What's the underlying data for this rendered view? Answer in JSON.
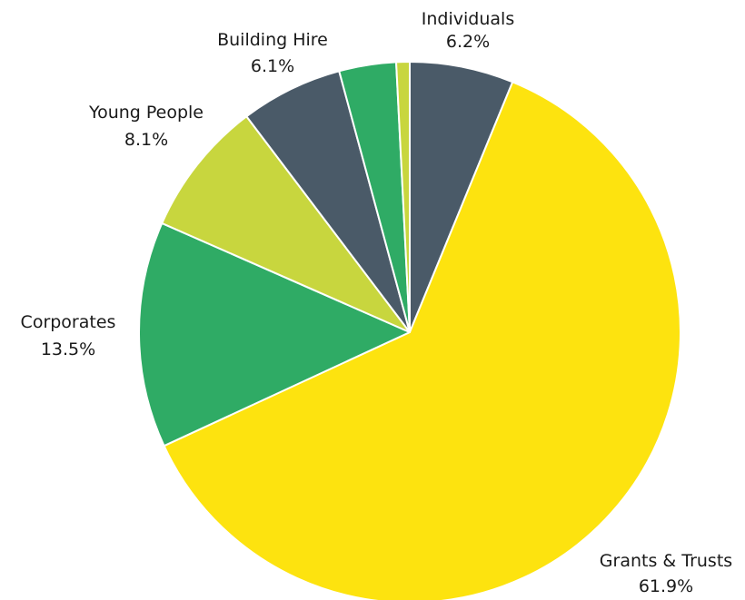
{
  "chart_data": {
    "type": "pie",
    "title": "",
    "start_angle_deg": 0,
    "direction": "clockwise",
    "slices": [
      {
        "name": "Individuals",
        "value": 6.2,
        "label": "6.2%",
        "color": "#4a5a68",
        "show_label": true
      },
      {
        "name": "Grants & Trusts",
        "value": 61.9,
        "label": "61.9%",
        "color": "#fde30f",
        "show_label": true
      },
      {
        "name": "Corporates",
        "value": 13.5,
        "label": "13.5%",
        "color": "#2fab65",
        "show_label": true
      },
      {
        "name": "Young People",
        "value": 8.1,
        "label": "8.1%",
        "color": "#c8d63e",
        "show_label": true
      },
      {
        "name": "Building Hire",
        "value": 6.1,
        "label": "6.1%",
        "color": "#4a5a68",
        "show_label": true
      },
      {
        "name": "",
        "value": 3.4,
        "label": "",
        "color": "#2fab65",
        "show_label": false
      },
      {
        "name": "",
        "value": 0.8,
        "label": "",
        "color": "#c8d63e",
        "show_label": false
      }
    ]
  }
}
